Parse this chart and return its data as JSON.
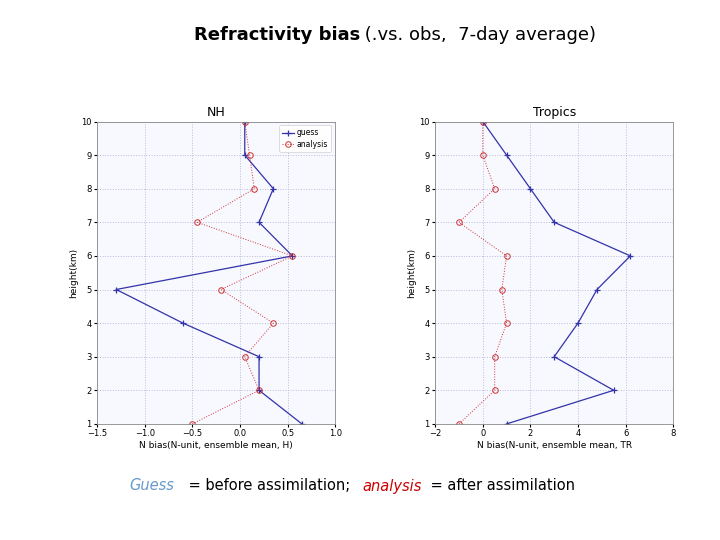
{
  "title_bold": "Refractivity bias",
  "title_normal": " (.vs. obs,  7-day average)",
  "subtitle_nh": "NH",
  "subtitle_tr": "Tropics",
  "heights": [
    1,
    2,
    3,
    4,
    5,
    6,
    7,
    8,
    9,
    10
  ],
  "nh_guess": [
    0.65,
    0.2,
    0.2,
    -0.6,
    -1.3,
    0.55,
    0.2,
    0.35,
    0.05,
    0.05
  ],
  "nh_analysis": [
    -0.5,
    0.2,
    0.05,
    0.35,
    -0.2,
    0.55,
    -0.45,
    0.15,
    0.1,
    0.05
  ],
  "tr_guess": [
    1.0,
    5.5,
    3.0,
    4.0,
    4.8,
    6.2,
    3.0,
    2.0,
    1.0,
    0.0
  ],
  "tr_analysis": [
    -1.0,
    0.5,
    0.5,
    1.0,
    0.8,
    1.0,
    -1.0,
    0.5,
    0.0,
    0.0
  ],
  "nh_xlim": [
    -1.5,
    1.0
  ],
  "tr_xlim": [
    -2.0,
    8.0
  ],
  "ylim": [
    1,
    10
  ],
  "nh_xlabel": "N bias(N-unit, ensemble mean, H)",
  "tr_xlabel": "N bias(N-unit, ensemble mean, TR",
  "ylabel": "height(km)",
  "guess_color": "#3333aa",
  "analysis_color": "#cc3333",
  "guess_label": "guess",
  "analysis_label": "analysis",
  "nh_xticks": [
    -1.5,
    -1.0,
    -0.5,
    0.0,
    0.5,
    1.0
  ],
  "tr_xticks": [
    -2,
    0,
    2,
    4,
    6,
    8
  ],
  "yticks": [
    1,
    2,
    3,
    4,
    5,
    6,
    7,
    8,
    9,
    10
  ],
  "bottom_text_guess": "Guess",
  "bottom_text_mid": " = before assimilation;   ",
  "bottom_text_analysis": "analysis",
  "bottom_text_end": " = after assimilation",
  "guess_text_color": "#6699cc",
  "analysis_text_color": "#cc0000",
  "black_text_color": "#000000",
  "grid_color": "#bbbbdd",
  "spine_color": "#888888",
  "bg_color": "#ffffff"
}
